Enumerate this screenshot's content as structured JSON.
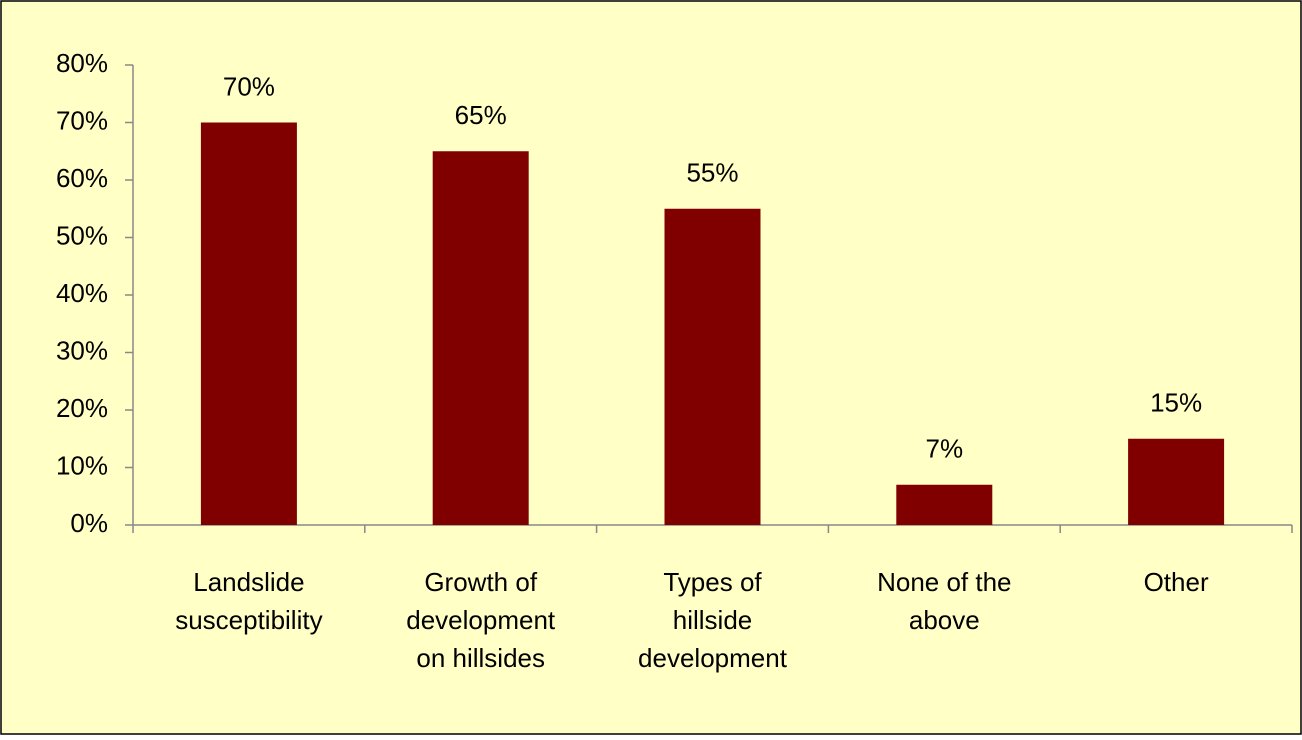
{
  "chart_data": {
    "type": "bar",
    "categories": [
      "Landslide\nsusceptibility",
      "Growth of\ndevelopment\non hillsides",
      "Types of\nhillside\ndevelopment",
      "None of the\nabove",
      "Other"
    ],
    "values": [
      70,
      65,
      55,
      7,
      15
    ],
    "value_labels": [
      "70%",
      "65%",
      "55%",
      "7%",
      "15%"
    ],
    "color": "#800000",
    "ylim": [
      0,
      80
    ],
    "yticks": [
      {
        "value": 0,
        "label": "0%"
      },
      {
        "value": 10,
        "label": "10%"
      },
      {
        "value": 20,
        "label": "20%"
      },
      {
        "value": 30,
        "label": "30%"
      },
      {
        "value": 40,
        "label": "40%"
      },
      {
        "value": 50,
        "label": "50%"
      },
      {
        "value": 60,
        "label": "60%"
      },
      {
        "value": 70,
        "label": "70%"
      },
      {
        "value": 80,
        "label": "80%"
      }
    ],
    "grid": false
  }
}
